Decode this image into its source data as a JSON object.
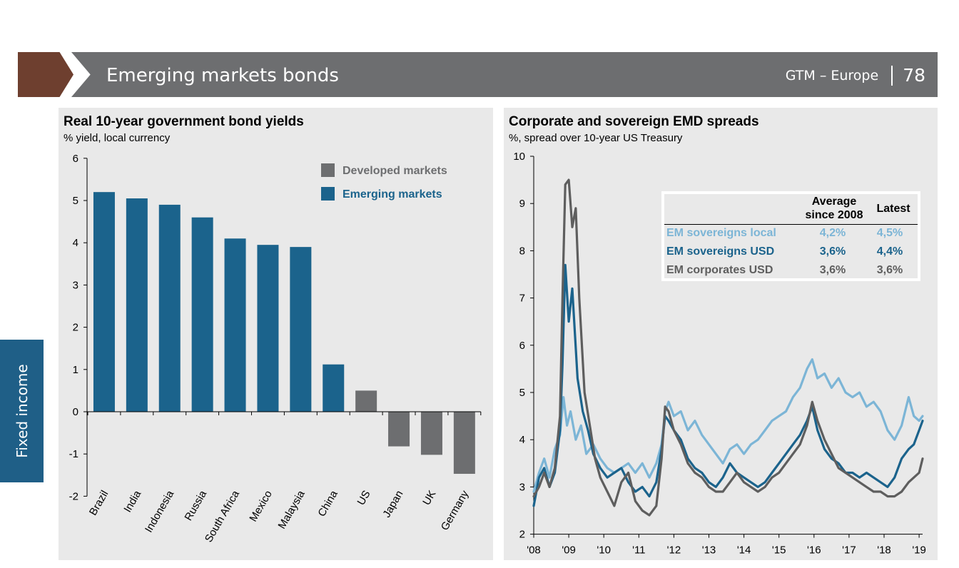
{
  "header": {
    "title": "Emerging markets bonds",
    "subtitle": "GTM – Europe",
    "page_number": "78",
    "colors": {
      "accent_brown": "#6e3f2f",
      "banner_gray": "#6d6e70"
    }
  },
  "side_tab": {
    "label": "Fixed income",
    "color": "#1f5f87"
  },
  "colors": {
    "emerging": "#1b638c",
    "developed": "#6d6e70",
    "em_sov_local": "#7cb5d6",
    "em_sov_usd": "#1b638c",
    "em_corp_usd": "#5e5e5e"
  },
  "chart_data": [
    {
      "type": "bar",
      "title": "Real 10-year government bond yields",
      "subtitle": "% yield, local currency",
      "categories": [
        "Brazil",
        "India",
        "Indonesia",
        "Russia",
        "South Africa",
        "Mexico",
        "Malaysia",
        "China",
        "US",
        "Japan",
        "UK",
        "Germany"
      ],
      "values": [
        5.2,
        5.05,
        4.9,
        4.6,
        4.1,
        3.95,
        3.9,
        1.12,
        0.5,
        -0.82,
        -1.02,
        -1.47
      ],
      "groups": [
        "Emerging markets",
        "Emerging markets",
        "Emerging markets",
        "Emerging markets",
        "Emerging markets",
        "Emerging markets",
        "Emerging markets",
        "Emerging markets",
        "Developed markets",
        "Developed markets",
        "Developed markets",
        "Developed markets"
      ],
      "legend": [
        "Developed markets",
        "Emerging markets"
      ],
      "legend_position": "top-right",
      "yticks": [
        "6",
        "5",
        "4",
        "3",
        "2",
        "1",
        "0",
        "-1",
        "-2"
      ],
      "ylim": [
        -2,
        6
      ]
    },
    {
      "type": "line",
      "title": "Corporate and sovereign EMD spreads",
      "subtitle": "%, spread over 10-year US Treasury",
      "xticks": [
        "'08",
        "'09",
        "'10",
        "'11",
        "'12",
        "'13",
        "'14",
        "'15",
        "'16",
        "'17",
        "'18",
        "'19"
      ],
      "yticks": [
        "10",
        "9",
        "8",
        "7",
        "6",
        "5",
        "4",
        "3",
        "2"
      ],
      "ylim": [
        2,
        10
      ],
      "xlim": [
        2008,
        2019.1
      ],
      "series": [
        {
          "name": "EM sovereigns local",
          "color": "#7cb5d6",
          "x": [
            2008.0,
            2008.15,
            2008.3,
            2008.45,
            2008.6,
            2008.75,
            2008.85,
            2008.95,
            2009.05,
            2009.2,
            2009.35,
            2009.5,
            2009.7,
            2009.9,
            2010.1,
            2010.3,
            2010.5,
            2010.7,
            2010.9,
            2011.1,
            2011.3,
            2011.5,
            2011.65,
            2011.75,
            2011.85,
            2012.0,
            2012.2,
            2012.4,
            2012.6,
            2012.8,
            2013.0,
            2013.2,
            2013.4,
            2013.6,
            2013.8,
            2014.0,
            2014.2,
            2014.4,
            2014.6,
            2014.8,
            2015.0,
            2015.2,
            2015.4,
            2015.6,
            2015.8,
            2015.95,
            2016.1,
            2016.3,
            2016.5,
            2016.7,
            2016.9,
            2017.1,
            2017.3,
            2017.5,
            2017.7,
            2017.9,
            2018.1,
            2018.3,
            2018.5,
            2018.7,
            2018.85,
            2019.0,
            2019.1
          ],
          "y": [
            2.9,
            3.3,
            3.6,
            3.2,
            3.8,
            4.1,
            4.9,
            4.3,
            4.6,
            4.0,
            4.3,
            3.7,
            3.9,
            3.6,
            3.4,
            3.3,
            3.4,
            3.5,
            3.3,
            3.5,
            3.2,
            3.5,
            3.9,
            4.6,
            4.8,
            4.5,
            4.6,
            4.2,
            4.4,
            4.1,
            3.9,
            3.7,
            3.5,
            3.8,
            3.9,
            3.7,
            3.9,
            4.0,
            4.2,
            4.4,
            4.5,
            4.6,
            4.9,
            5.1,
            5.5,
            5.7,
            5.3,
            5.4,
            5.1,
            5.3,
            5.0,
            4.9,
            5.0,
            4.7,
            4.8,
            4.6,
            4.2,
            4.0,
            4.3,
            4.9,
            4.5,
            4.4,
            4.5
          ]
        },
        {
          "name": "EM sovereigns USD",
          "color": "#1b638c",
          "x": [
            2008.0,
            2008.15,
            2008.3,
            2008.45,
            2008.6,
            2008.75,
            2008.82,
            2008.9,
            2009.0,
            2009.1,
            2009.25,
            2009.4,
            2009.55,
            2009.7,
            2009.9,
            2010.1,
            2010.3,
            2010.5,
            2010.7,
            2010.9,
            2011.1,
            2011.3,
            2011.5,
            2011.65,
            2011.75,
            2011.85,
            2012.0,
            2012.2,
            2012.4,
            2012.6,
            2012.8,
            2013.0,
            2013.2,
            2013.4,
            2013.6,
            2013.8,
            2014.0,
            2014.2,
            2014.4,
            2014.6,
            2014.8,
            2015.0,
            2015.2,
            2015.4,
            2015.6,
            2015.8,
            2015.95,
            2016.1,
            2016.3,
            2016.5,
            2016.7,
            2016.9,
            2017.1,
            2017.3,
            2017.5,
            2017.7,
            2017.9,
            2018.1,
            2018.3,
            2018.5,
            2018.7,
            2018.85,
            2019.0,
            2019.1
          ],
          "y": [
            2.6,
            3.2,
            3.4,
            3.0,
            3.3,
            4.2,
            5.6,
            7.7,
            6.5,
            7.2,
            5.3,
            4.6,
            4.2,
            3.7,
            3.4,
            3.2,
            3.3,
            3.4,
            3.1,
            2.9,
            3.0,
            2.8,
            3.1,
            3.8,
            4.5,
            4.4,
            4.2,
            4.0,
            3.6,
            3.4,
            3.3,
            3.1,
            3.0,
            3.2,
            3.5,
            3.3,
            3.2,
            3.1,
            3.0,
            3.1,
            3.3,
            3.5,
            3.7,
            3.9,
            4.1,
            4.4,
            4.7,
            4.2,
            3.8,
            3.6,
            3.5,
            3.3,
            3.3,
            3.2,
            3.3,
            3.2,
            3.1,
            3.0,
            3.2,
            3.6,
            3.8,
            3.9,
            4.2,
            4.4
          ]
        },
        {
          "name": "EM corporates USD",
          "color": "#5e5e5e",
          "x": [
            2008.0,
            2008.15,
            2008.3,
            2008.45,
            2008.6,
            2008.75,
            2008.82,
            2008.9,
            2009.0,
            2009.1,
            2009.2,
            2009.3,
            2009.45,
            2009.6,
            2009.75,
            2009.9,
            2010.1,
            2010.3,
            2010.5,
            2010.7,
            2010.9,
            2011.1,
            2011.3,
            2011.5,
            2011.65,
            2011.75,
            2011.85,
            2012.0,
            2012.2,
            2012.4,
            2012.6,
            2012.8,
            2013.0,
            2013.2,
            2013.4,
            2013.6,
            2013.8,
            2014.0,
            2014.2,
            2014.4,
            2014.6,
            2014.8,
            2015.0,
            2015.2,
            2015.4,
            2015.6,
            2015.8,
            2015.95,
            2016.1,
            2016.3,
            2016.5,
            2016.7,
            2016.9,
            2017.1,
            2017.3,
            2017.5,
            2017.7,
            2017.9,
            2018.1,
            2018.3,
            2018.5,
            2018.7,
            2018.85,
            2019.0,
            2019.1
          ],
          "y": [
            2.8,
            3.0,
            3.3,
            3.0,
            3.4,
            4.5,
            7.0,
            9.4,
            9.5,
            8.5,
            8.9,
            7.0,
            5.0,
            4.3,
            3.6,
            3.2,
            2.9,
            2.6,
            3.1,
            3.3,
            2.7,
            2.5,
            2.4,
            2.6,
            3.6,
            4.7,
            4.6,
            4.2,
            3.9,
            3.5,
            3.3,
            3.2,
            3.0,
            2.9,
            2.9,
            3.1,
            3.3,
            3.1,
            3.0,
            2.9,
            3.0,
            3.2,
            3.3,
            3.5,
            3.7,
            3.9,
            4.3,
            4.8,
            4.4,
            4.0,
            3.7,
            3.4,
            3.3,
            3.2,
            3.1,
            3.0,
            2.9,
            2.9,
            2.8,
            2.8,
            2.9,
            3.1,
            3.2,
            3.3,
            3.6
          ]
        }
      ],
      "legend_table": {
        "col_average": "Average since 2008",
        "col_latest": "Latest",
        "rows": [
          {
            "name": "EM sovereigns local",
            "average": "4,2%",
            "latest": "4,5%",
            "color": "#7cb5d6"
          },
          {
            "name": "EM sovereigns USD",
            "average": "3,6%",
            "latest": "4,4%",
            "color": "#1b638c"
          },
          {
            "name": "EM corporates USD",
            "average": "3,6%",
            "latest": "3,6%",
            "color": "#5e5e5e"
          }
        ]
      }
    }
  ]
}
